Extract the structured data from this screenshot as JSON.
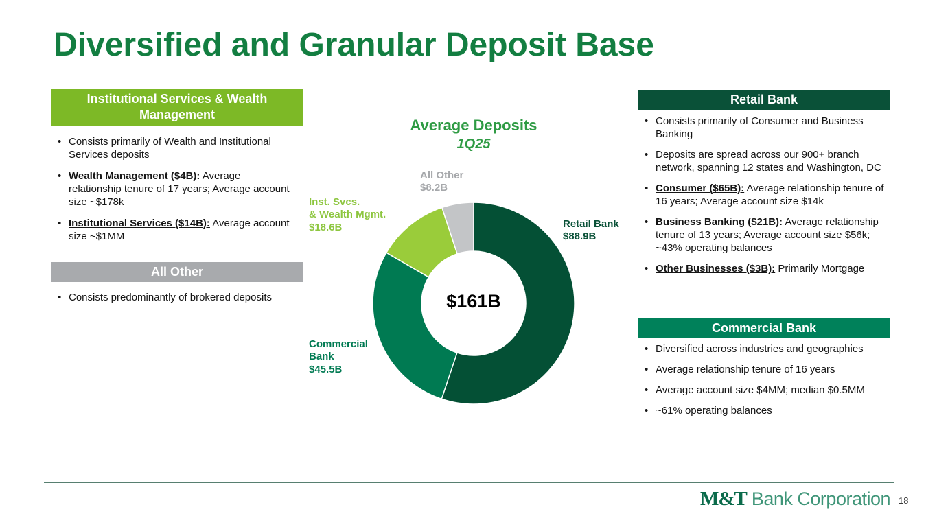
{
  "slide": {
    "title": "Diversified and Granular Deposit Base"
  },
  "colors": {
    "title_green": "#137e41",
    "chart_title_green": "#2f9b44",
    "light_green_header": "#7db926",
    "gray_header": "#a8aaad",
    "dark_green_header": "#0a5138",
    "mid_green_header": "#00815a",
    "footer_line": "#577f70",
    "logo_dark": "#0b6b4b",
    "logo_light": "#3f9578",
    "text": "#151515"
  },
  "left_panel": {
    "header": "Institutional Services & Wealth Management",
    "bullets": [
      {
        "lead": "",
        "rest": "Consists primarily of Wealth and Institutional Services deposits"
      },
      {
        "lead": "Wealth Management ($4B):",
        "rest": " Average relationship tenure of 17 years; Average account size ~$178k"
      },
      {
        "lead": "Institutional Services ($14B):",
        "rest": " Average account size ~$1MM"
      }
    ],
    "all_other_header": "All Other",
    "all_other_bullets": [
      {
        "lead": "",
        "rest": "Consists predominantly of brokered deposits"
      }
    ]
  },
  "chart_data": {
    "type": "pie",
    "variant": "donut",
    "title": "Average Deposits",
    "subtitle": "1Q25",
    "center_total": "$161B",
    "start_angle_deg": 0,
    "direction": "clockwise",
    "donut_hole_ratio": 0.51,
    "segments": [
      {
        "label": "Retail Bank",
        "value": 88.9,
        "display": "$88.9B",
        "color": "#045035"
      },
      {
        "label": "Commercial Bank",
        "value": 45.5,
        "display": "$45.5B",
        "color": "#007a52"
      },
      {
        "label": "Inst. Svcs. & Wealth Mgmt.",
        "value": 18.6,
        "display": "$18.6B",
        "color": "#9acc3a"
      },
      {
        "label": "All Other",
        "value": 8.2,
        "display": "$8.2B",
        "color": "#c3c5c7"
      }
    ],
    "callouts": [
      {
        "text": "Retail Bank\n$88.9B",
        "color": "#0a5138"
      },
      {
        "text": "Commercial\nBank\n$45.5B",
        "color": "#007a52"
      },
      {
        "text": "Inst. Svcs.\n& Wealth Mgmt.\n$18.6B",
        "color": "#8dc63f"
      },
      {
        "text": "All Other\n$8.2B",
        "color": "#a6a8ab"
      }
    ]
  },
  "right_panel": {
    "retail_header": "Retail Bank",
    "retail_bullets": [
      {
        "lead": "",
        "rest": "Consists primarily of Consumer and Business Banking"
      },
      {
        "lead": "",
        "rest": "Deposits are spread across our 900+ branch network, spanning 12 states and Washington, DC"
      },
      {
        "lead": "Consumer ($65B):",
        "rest": " Average relationship tenure of 16 years; Average account size $14k"
      },
      {
        "lead": "Business Banking ($21B):",
        "rest": " Average relationship tenure of 13 years; Average account size $56k; ~43% operating balances"
      },
      {
        "lead": "Other Businesses ($3B):",
        "rest": " Primarily Mortgage"
      }
    ],
    "commercial_header": "Commercial Bank",
    "commercial_bullets": [
      {
        "lead": "",
        "rest": "Diversified across industries and geographies"
      },
      {
        "lead": "",
        "rest": "Average relationship tenure of 16 years"
      },
      {
        "lead": "",
        "rest": "Average account size $4MM; median $0.5MM"
      },
      {
        "lead": "",
        "rest": "~61% operating balances"
      }
    ]
  },
  "footer": {
    "logo_mt": "M&T",
    "logo_rest": "Bank Corporation",
    "page_number": "18"
  }
}
